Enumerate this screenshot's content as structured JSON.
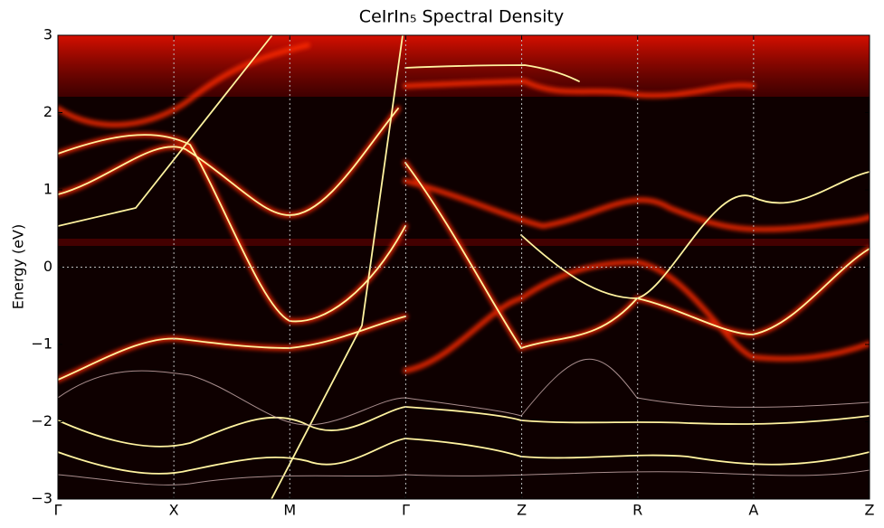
{
  "chart_data": {
    "type": "spectral-map",
    "title": "CeIrIn₅ Spectral Density",
    "ylabel": "Energy (eV)",
    "xlim": [
      0,
      7
    ],
    "xticks": [
      {
        "value": 0,
        "label": "Γ"
      },
      {
        "value": 1,
        "label": "X"
      },
      {
        "value": 2,
        "label": "M"
      },
      {
        "value": 3,
        "label": "Γ"
      },
      {
        "value": 4,
        "label": "Z"
      },
      {
        "value": 5,
        "label": "R"
      },
      {
        "value": 6,
        "label": "A"
      },
      {
        "value": 7,
        "label": "Z"
      }
    ],
    "ylim": [
      -3,
      3
    ],
    "yticks": [
      {
        "value": -3,
        "label": "−3"
      },
      {
        "value": -2,
        "label": "−2"
      },
      {
        "value": -1,
        "label": "−1"
      },
      0,
      1,
      2,
      3
    ],
    "grid": "x",
    "hline": 0
  }
}
